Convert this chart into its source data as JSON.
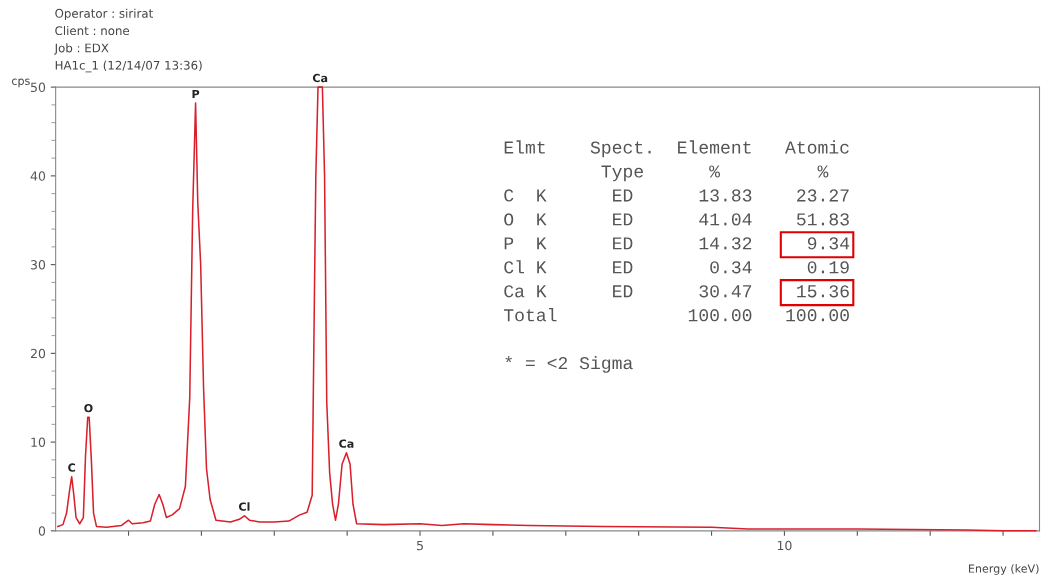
{
  "chart_data": {
    "type": "line",
    "xlabel": "Energy (keV)",
    "ylabel": "cps",
    "xlim": [
      0,
      13.5
    ],
    "ylim": [
      0,
      50
    ],
    "xticks": [
      {
        "value": 1,
        "label": null
      },
      {
        "value": 2,
        "label": null
      },
      {
        "value": 3,
        "label": null
      },
      {
        "value": 4,
        "label": null
      },
      5,
      {
        "value": 6,
        "label": null
      },
      {
        "value": 7,
        "label": null
      },
      {
        "value": 8,
        "label": null
      },
      {
        "value": 9,
        "label": null
      },
      10,
      {
        "value": 11,
        "label": null
      },
      {
        "value": 12,
        "label": null
      },
      {
        "value": 13,
        "label": null
      }
    ],
    "yticks": [
      0,
      10,
      20,
      30,
      40,
      50
    ],
    "grid": false,
    "legend": false,
    "marker": "none",
    "line_style": "solid",
    "series": [
      {
        "color": "#d81f2a",
        "x": [
          0.03,
          0.1,
          0.15,
          0.19,
          0.22,
          0.25,
          0.28,
          0.33,
          0.38,
          0.41,
          0.44,
          0.46,
          0.49,
          0.52,
          0.56,
          0.7,
          0.9,
          1.0,
          1.05,
          1.2,
          1.3,
          1.36,
          1.42,
          1.47,
          1.52,
          1.6,
          1.7,
          1.78,
          1.84,
          1.88,
          1.92,
          1.95,
          1.99,
          2.03,
          2.07,
          2.12,
          2.2,
          2.4,
          2.52,
          2.59,
          2.66,
          2.8,
          3.0,
          3.2,
          3.35,
          3.45,
          3.52,
          3.55,
          3.57,
          3.6,
          3.66,
          3.69,
          3.72,
          3.76,
          3.8,
          3.84,
          3.88,
          3.93,
          3.99,
          4.04,
          4.08,
          4.13,
          4.5,
          5.0,
          5.3,
          5.6,
          6.0,
          6.5,
          7.5,
          9.0,
          9.5,
          11.0,
          12.5,
          13.0,
          13.45
        ],
        "values": [
          0.5,
          0.7,
          2.0,
          4.5,
          6.1,
          4.0,
          1.5,
          0.8,
          1.5,
          8.5,
          12.8,
          12.8,
          8.0,
          2.0,
          0.5,
          0.4,
          0.6,
          1.2,
          0.8,
          0.9,
          1.1,
          3.0,
          4.1,
          3.0,
          1.5,
          1.8,
          2.5,
          5.0,
          15,
          36,
          48.2,
          37,
          30,
          16,
          7,
          3.5,
          1.2,
          1.0,
          1.3,
          1.7,
          1.2,
          1.0,
          1.0,
          1.1,
          1.8,
          2.1,
          4,
          26,
          40,
          50,
          50,
          40,
          14.5,
          6.5,
          3,
          1.2,
          3,
          7.5,
          8.8,
          7.5,
          3,
          0.8,
          0.7,
          0.8,
          0.6,
          0.8,
          0.7,
          0.6,
          0.5,
          0.4,
          0.2,
          0.2,
          0.1,
          0.0,
          0.0
        ]
      }
    ],
    "annotations": [
      "Operator : sirirat",
      "Client : none",
      "Job : EDX",
      "HA1c_1 (12/14/07 13:36)",
      "Elmt    Spect.  Element   Atomic",
      "         Type      %         %",
      "C  K      ED      13.83    23.27",
      "O  K      ED      41.04    51.83",
      "P  K      ED      14.32     9.34",
      "Cl K      ED       0.34     0.19",
      "Ca K      ED      30.47    15.36",
      "Total            100.00   100.00",
      "* = <2 Sigma",
      {
        "text": "C",
        "x": 0.22,
        "y": 6.1
      },
      {
        "text": "O",
        "x": 0.45,
        "y": 12.8
      },
      {
        "text": "P",
        "x": 1.92,
        "y": 48.2
      },
      {
        "text": "Cl",
        "x": 2.59,
        "y": 1.7
      },
      {
        "text": "Ca",
        "x": 3.63,
        "y": 50
      },
      {
        "text": "Ca",
        "x": 3.99,
        "y": 8.8
      }
    ]
  }
}
